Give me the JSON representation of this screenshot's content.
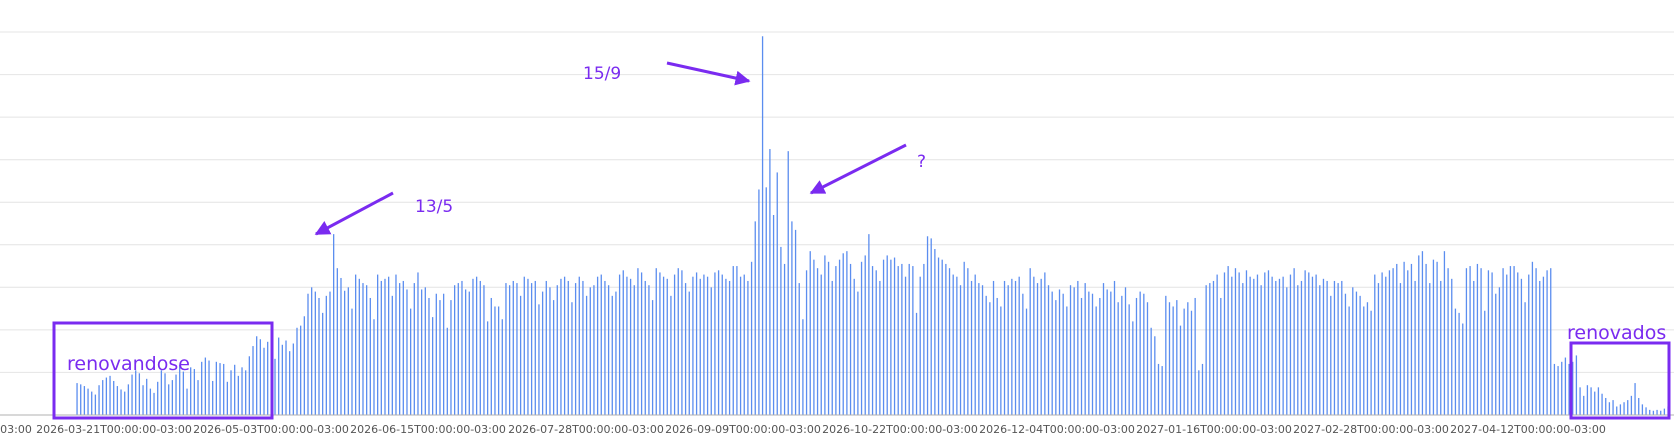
{
  "chart_data": {
    "type": "bar",
    "grid": true,
    "legend": "none",
    "colors": {
      "bar": "#5b8def",
      "grid": "#e4e4e4",
      "annotation": "#7a2bf0",
      "axis": "#888888"
    },
    "x_tick_labels": [
      "03:00",
      "2026-03-21T00:00:00-03:00",
      "2026-05-03T00:00:00-03:00",
      "2026-06-15T00:00:00-03:00",
      "2026-07-28T00:00:00-03:00",
      "2026-09-09T00:00:00-03:00",
      "2026-10-22T00:00:00-03:00",
      "2026-12-04T00:00:00-03:00",
      "2027-01-16T00:00:00-03:00",
      "2027-02-28T00:00:00-03:00",
      "2027-04-12T00:00:00-03:00"
    ],
    "ylim": [
      0,
      9
    ],
    "values": [
      0.75,
      0.72,
      0.68,
      0.62,
      0.55,
      0.48,
      0.7,
      0.82,
      0.88,
      0.92,
      0.8,
      0.68,
      0.6,
      0.55,
      0.72,
      0.95,
      1.05,
      0.98,
      0.7,
      0.85,
      0.62,
      0.52,
      0.78,
      1.05,
      0.98,
      0.72,
      0.82,
      0.95,
      1.18,
      1.02,
      0.62,
      1.12,
      1.08,
      0.82,
      1.25,
      1.35,
      1.28,
      0.8,
      1.25,
      1.22,
      1.2,
      0.78,
      1.05,
      1.18,
      0.92,
      1.12,
      1.05,
      1.38,
      1.62,
      1.85,
      1.78,
      1.58,
      1.72,
      1.45,
      1.32,
      1.82,
      1.65,
      1.75,
      1.5,
      1.68,
      2.05,
      2.1,
      2.32,
      2.85,
      3.0,
      2.9,
      2.75,
      2.4,
      2.8,
      2.9,
      4.25,
      3.45,
      3.22,
      2.92,
      3.0,
      2.5,
      3.3,
      3.2,
      3.1,
      3.05,
      2.75,
      2.25,
      3.3,
      3.15,
      3.2,
      3.25,
      2.8,
      3.3,
      3.1,
      3.15,
      2.95,
      2.5,
      3.1,
      3.35,
      2.95,
      3.0,
      2.75,
      2.3,
      2.85,
      2.7,
      2.85,
      2.05,
      2.7,
      3.05,
      3.1,
      3.15,
      2.95,
      2.9,
      3.2,
      3.25,
      3.15,
      3.05,
      2.2,
      2.75,
      2.55,
      2.55,
      2.25,
      3.1,
      3.05,
      3.15,
      3.1,
      2.8,
      3.25,
      3.2,
      3.1,
      3.15,
      2.6,
      2.9,
      3.15,
      3.0,
      2.7,
      3.05,
      3.2,
      3.25,
      3.15,
      2.65,
      3.1,
      3.25,
      3.15,
      2.8,
      3.0,
      3.05,
      3.25,
      3.3,
      3.15,
      3.05,
      2.8,
      2.9,
      3.3,
      3.4,
      3.25,
      3.2,
      3.05,
      3.45,
      3.35,
      3.15,
      3.05,
      2.7,
      3.45,
      3.35,
      3.25,
      3.2,
      2.8,
      3.3,
      3.45,
      3.4,
      3.1,
      2.9,
      3.25,
      3.35,
      3.2,
      3.3,
      3.25,
      3.0,
      3.35,
      3.4,
      3.3,
      3.2,
      3.15,
      3.5,
      3.5,
      3.25,
      3.3,
      3.15,
      3.6,
      4.55,
      5.3,
      8.9,
      5.35,
      6.25,
      4.7,
      5.7,
      3.95,
      3.55,
      6.2,
      4.55,
      4.35,
      3.1,
      2.25,
      3.4,
      3.85,
      3.65,
      3.45,
      3.3,
      3.75,
      3.6,
      3.15,
      3.5,
      3.65,
      3.8,
      3.85,
      3.55,
      3.2,
      2.9,
      3.6,
      3.75,
      4.25,
      3.5,
      3.4,
      3.15,
      3.65,
      3.75,
      3.65,
      3.7,
      3.5,
      3.55,
      3.25,
      3.55,
      3.5,
      2.4,
      3.25,
      3.55,
      4.2,
      4.15,
      3.9,
      3.7,
      3.65,
      3.55,
      3.45,
      3.3,
      3.25,
      3.05,
      3.6,
      3.45,
      3.15,
      3.3,
      3.1,
      3.05,
      2.8,
      2.65,
      3.15,
      2.75,
      2.55,
      3.15,
      3.05,
      3.2,
      3.15,
      3.25,
      2.85,
      2.5,
      3.45,
      3.25,
      3.1,
      3.2,
      3.35,
      3.05,
      2.9,
      2.7,
      2.95,
      2.85,
      2.55,
      3.05,
      3.0,
      3.15,
      2.75,
      3.1,
      2.9,
      2.85,
      2.55,
      2.75,
      3.1,
      2.95,
      2.9,
      3.15,
      2.65,
      2.8,
      3.0,
      2.6,
      2.2,
      2.75,
      2.9,
      2.85,
      2.65,
      2.05,
      1.85,
      1.2,
      1.15,
      2.8,
      2.65,
      2.55,
      2.7,
      2.1,
      2.5,
      2.65,
      2.45,
      2.75,
      1.05,
      1.2,
      3.05,
      3.1,
      3.15,
      3.3,
      2.75,
      3.35,
      3.5,
      3.25,
      3.45,
      3.35,
      3.1,
      3.4,
      3.25,
      3.2,
      3.3,
      3.05,
      3.35,
      3.4,
      3.25,
      3.15,
      3.2,
      3.25,
      3.0,
      3.3,
      3.45,
      3.05,
      3.15,
      3.4,
      3.35,
      3.25,
      3.3,
      3.05,
      3.2,
      3.15,
      2.8,
      3.15,
      3.1,
      3.15,
      2.85,
      2.55,
      3.0,
      2.9,
      2.8,
      2.55,
      2.65,
      2.45,
      3.3,
      3.1,
      3.35,
      3.25,
      3.4,
      3.45,
      3.55,
      3.1,
      3.6,
      3.4,
      3.55,
      3.15,
      3.75,
      3.85,
      3.55,
      3.1,
      3.65,
      3.6,
      3.15,
      3.85,
      3.45,
      3.2,
      2.5,
      2.4,
      2.15,
      3.45,
      3.5,
      3.15,
      3.55,
      3.45,
      2.45,
      3.4,
      3.35,
      2.85,
      3.0,
      3.45,
      3.3,
      3.5,
      3.5,
      3.35,
      3.2,
      2.65,
      3.3,
      3.6,
      3.45,
      3.15,
      3.25,
      3.4,
      3.45,
      1.2,
      1.15,
      1.25,
      1.35,
      1.2,
      1.25,
      1.4,
      0.65,
      0.45,
      0.7,
      0.65,
      0.55,
      0.65,
      0.5,
      0.4,
      0.3,
      0.35,
      0.2,
      0.25,
      0.3,
      0.35,
      0.45,
      0.75,
      0.4,
      0.25,
      0.18,
      0.12,
      0.1,
      0.12,
      0.1,
      0.15,
      0.2
    ],
    "annotations": {
      "label_1": "15/9",
      "label_2": "13/5",
      "label_3": "?",
      "box_left_label": "renovandose",
      "box_right_label": "renovados"
    }
  }
}
